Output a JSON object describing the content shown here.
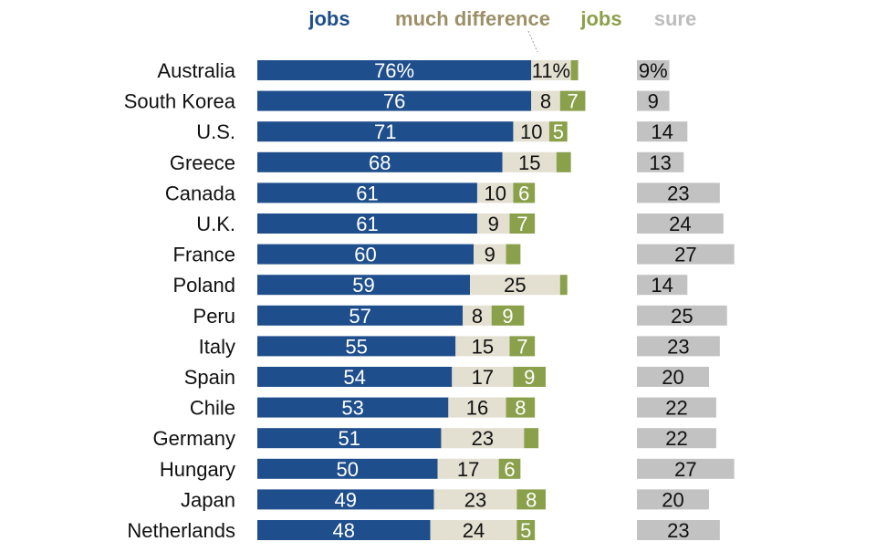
{
  "chart_data": {
    "type": "bar",
    "stacked": true,
    "horizontal": true,
    "legend": [
      {
        "label": "jobs",
        "color": "#1f4e8c"
      },
      {
        "label": "much difference",
        "color": "#9c9068"
      },
      {
        "label": "jobs",
        "color": "#8aa04a"
      },
      {
        "label": "sure",
        "color": "#bdbdbd"
      }
    ],
    "categories": [
      "Australia",
      "South Korea",
      "U.S.",
      "Greece",
      "Canada",
      "U.K.",
      "France",
      "Poland",
      "Peru",
      "Italy",
      "Spain",
      "Chile",
      "Germany",
      "Hungary",
      "Japan",
      "Netherlands"
    ],
    "series": [
      {
        "values": [
          76,
          76,
          71,
          68,
          61,
          61,
          60,
          59,
          57,
          55,
          54,
          53,
          51,
          50,
          49,
          48
        ],
        "color": "#1f4e8c",
        "label_color": "#ffffff"
      },
      {
        "values": [
          11,
          8,
          10,
          15,
          10,
          9,
          9,
          25,
          8,
          15,
          17,
          16,
          23,
          17,
          23,
          24
        ],
        "color": "#e3dfd1",
        "label_color": "#111111"
      },
      {
        "values": [
          2,
          7,
          5,
          4,
          6,
          7,
          4,
          2,
          9,
          7,
          9,
          8,
          4,
          6,
          8,
          5
        ],
        "color": "#8aa04a",
        "label_color": "#ffffff"
      },
      {
        "values": [
          9,
          9,
          14,
          13,
          23,
          24,
          27,
          14,
          25,
          23,
          20,
          22,
          22,
          27,
          20,
          23
        ],
        "color": "#c2c2c2",
        "label_color": "#111111"
      }
    ],
    "labels": [
      [
        "76%",
        "11%",
        "",
        "9%"
      ],
      [
        "76",
        "8",
        "7",
        "9"
      ],
      [
        "71",
        "10",
        "5",
        "14"
      ],
      [
        "68",
        "15",
        "",
        "13"
      ],
      [
        "61",
        "10",
        "6",
        "23"
      ],
      [
        "61",
        "9",
        "7",
        "24"
      ],
      [
        "60",
        "9",
        "",
        "27"
      ],
      [
        "59",
        "25",
        "",
        "14"
      ],
      [
        "57",
        "8",
        "9",
        "25"
      ],
      [
        "55",
        "15",
        "7",
        "23"
      ],
      [
        "54",
        "17",
        "9",
        "20"
      ],
      [
        "53",
        "16",
        "8",
        "22"
      ],
      [
        "51",
        "23",
        "",
        "22"
      ],
      [
        "50",
        "17",
        "6",
        "27"
      ],
      [
        "49",
        "23",
        "8",
        "20"
      ],
      [
        "48",
        "24",
        "5",
        "23"
      ]
    ]
  }
}
